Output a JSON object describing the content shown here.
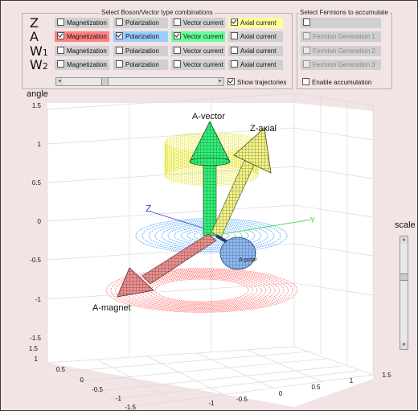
{
  "colors": {
    "window_bg": "#f2e4e4",
    "cell_gray": "#cfcfcf",
    "yellow": "#ffff99",
    "red": "#ff8080",
    "blue": "#99ccff",
    "green": "#66ff99",
    "arrow_green": "#33ee77",
    "arrow_red": "#e89090",
    "arrow_yellow": "#f2f28a",
    "sphere_blue": "#8fb8ee",
    "ring_yellow": "#e6e600",
    "ring_blue": "#3399ff",
    "ring_red": "#ff6666",
    "axis_blue": "#3344cc",
    "axis_green": "#33dd33"
  },
  "boson_panel": {
    "title": "Select Boson/Vector type combinations",
    "rows": [
      {
        "label": "Z",
        "cells": [
          {
            "text": "Magnetization",
            "checked": false,
            "color": "gray"
          },
          {
            "text": "Polarization",
            "checked": false,
            "color": "gray"
          },
          {
            "text": "Vector current",
            "checked": false,
            "color": "gray"
          },
          {
            "text": "Axial current",
            "checked": true,
            "color": "yellow"
          }
        ]
      },
      {
        "label": "A",
        "cells": [
          {
            "text": "Magnetization",
            "checked": true,
            "color": "red"
          },
          {
            "text": "Polarization",
            "checked": true,
            "color": "blue"
          },
          {
            "text": "Vector current",
            "checked": true,
            "color": "green"
          },
          {
            "text": "Axial current",
            "checked": false,
            "color": "gray"
          }
        ]
      },
      {
        "label": "W1",
        "cells": [
          {
            "text": "Magnetization",
            "checked": false,
            "color": "gray"
          },
          {
            "text": "Polarization",
            "checked": false,
            "color": "gray"
          },
          {
            "text": "Vector current",
            "checked": false,
            "color": "gray"
          },
          {
            "text": "Axial current",
            "checked": false,
            "color": "gray"
          }
        ]
      },
      {
        "label": "W2",
        "cells": [
          {
            "text": "Magnetization",
            "checked": false,
            "color": "gray"
          },
          {
            "text": "Polarization",
            "checked": false,
            "color": "gray"
          },
          {
            "text": "Vector current",
            "checked": false,
            "color": "gray"
          },
          {
            "text": "Axial current",
            "checked": false,
            "color": "gray"
          }
        ]
      }
    ],
    "show_trajectories": {
      "label": "Show trajectories",
      "checked": true
    },
    "trajectory_slider_value": 0.26
  },
  "fermion_panel": {
    "title": "Select Fermions to accumulate",
    "items": [
      {
        "text": "",
        "checked": false,
        "enabled": true
      },
      {
        "text": "Fermion Generation 1",
        "checked": false,
        "enabled": false
      },
      {
        "text": "Fermion Generation 2",
        "checked": false,
        "enabled": false
      },
      {
        "text": "Fermion Generation 3",
        "checked": false,
        "enabled": false
      }
    ],
    "enable_accumulation": {
      "label": "Enable accumulation",
      "checked": false
    }
  },
  "plot": {
    "zlabel": "angle",
    "z_ticks": [
      "1.5",
      "1",
      "0.5",
      "0",
      "-0.5",
      "-1",
      "-1.5"
    ],
    "left_ticks": [
      "1.5",
      "1",
      "0.5",
      "0",
      "-0.5",
      "-1",
      "-1.5"
    ],
    "bottom_ticks": [
      "-1",
      "-0.5",
      "0",
      "0.5",
      "1",
      "1.5"
    ],
    "arrow_labels": {
      "vector": "A-vector",
      "axial": "Z-axial",
      "magnet": "A-magnet",
      "polar": "A-polar"
    },
    "axis_labels": {
      "z": "Z",
      "y": "Y"
    }
  },
  "scale": {
    "label": "scale",
    "value": 0.32
  }
}
